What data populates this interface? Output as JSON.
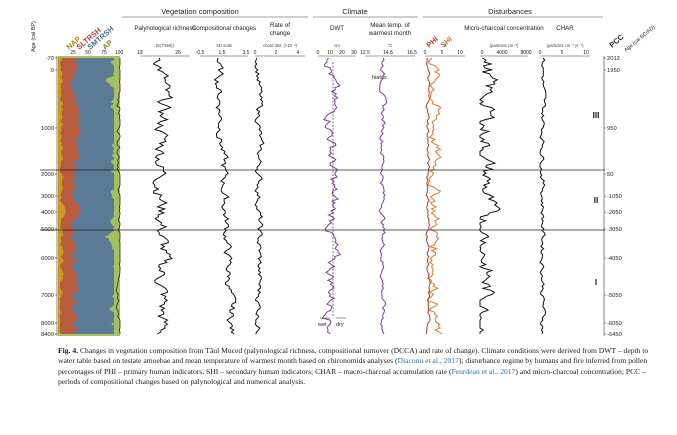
{
  "figure": {
    "group_headers": [
      "Vegetation composition",
      "Climate",
      "Disturbances"
    ],
    "age_axis": {
      "title": "Age (cal BP)",
      "ticks": [
        "-70",
        "0",
        "1000",
        "2000",
        "3000",
        "4000",
        "5000",
        "6000",
        "7000",
        "8000",
        "8400"
      ]
    },
    "right_axis": {
      "title": "Age (cal BC/AD)",
      "ticks": [
        "2012",
        "1950",
        "950",
        "50",
        "-1050",
        "-2050",
        "-3050",
        "-4050",
        "-5050",
        "-6050",
        "-6450"
      ]
    },
    "pollen_panel": {
      "labels": [
        "NAP",
        "SLTRSH",
        "SMTRSH",
        "AP"
      ],
      "label_colors": [
        "#b8860b",
        "#c0392b",
        "#4a6f8c",
        "#7a8f2a"
      ],
      "ticks": [
        "25",
        "50",
        "75",
        "100"
      ]
    },
    "columns": [
      {
        "key": "richness",
        "title": "Palynological richness",
        "unit": "(E(T358))",
        "ticks": [
          "18",
          "26"
        ]
      },
      {
        "key": "compositional",
        "title": "Compositional changes",
        "unit": "SD units",
        "ticks": [
          "-0.5",
          "1.5",
          "3.5"
        ]
      },
      {
        "key": "roc",
        "title": "Rate of change",
        "unit": "chord dist. (×10⁻³)",
        "ticks": [
          "0",
          "2",
          "4"
        ]
      },
      {
        "key": "dwt",
        "title": "DWT",
        "unit": "cm",
        "ticks": [
          "0",
          "10",
          "20",
          "30"
        ],
        "axis_bottom": [
          "wet",
          "dry"
        ]
      },
      {
        "key": "temp",
        "title": "Mean temp. of warmest month",
        "unit": "°C",
        "ticks": [
          "12.5",
          "14.5",
          "16.5"
        ],
        "annotation": "hiatus"
      },
      {
        "key": "phi_shi",
        "title_phi": "PHI",
        "title_shi": "SHI",
        "unit": "%",
        "ticks": [
          "0",
          "5",
          "10"
        ]
      },
      {
        "key": "microcharcoal",
        "title": "Micro-charcoal concentration",
        "unit": "(particles cm⁻³)",
        "ticks": [
          "0",
          "4000",
          "8000"
        ]
      },
      {
        "key": "char",
        "title": "CHAR",
        "unit": "(particles cm⁻² yr⁻¹)",
        "ticks": [
          "0",
          "5",
          "10"
        ]
      }
    ],
    "pcc": {
      "title": "PCC",
      "zones": [
        "III",
        "II",
        "I"
      ]
    }
  },
  "caption": {
    "label": "Fig. 4.",
    "part1": "Changes in vegetation composition from Tãul Muced (palynological richness, compositional turnover (DCCA) and rate of change). Climate conditions were derived from DWT – depth to water table based on testate amoebae and mean temperature of warmest month based on chironomids analyses (",
    "ref1": "Diaconu et al., 2017",
    "part2": "); disturbance regime by humans and fire inferred from pollen percentages of PHI – primary human indicators, SHI – secondary human indicators; CHAR – macro-charcoal accumulation rate (",
    "ref2": "Feurdean et al., 2017",
    "part3": ") and micro-charcoal concentration; PCC – periods of compositional changes based on palynological and numerical analysis."
  }
}
